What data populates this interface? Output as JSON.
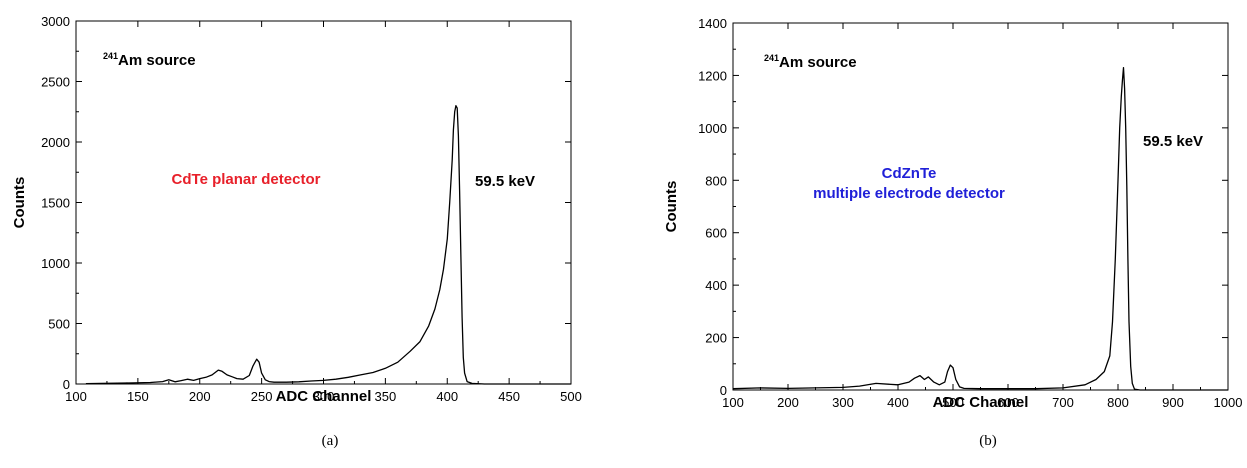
{
  "chart_data": [
    {
      "type": "line",
      "caption": "(a)",
      "xlabel": "ADC  Channel",
      "ylabel": "Counts",
      "xlim": [
        100,
        500
      ],
      "ylim": [
        0,
        3000
      ],
      "xticks": [
        100,
        150,
        200,
        250,
        300,
        350,
        400,
        450,
        500
      ],
      "yticks": [
        0,
        500,
        1000,
        1500,
        2000,
        2500,
        3000
      ],
      "source_label": {
        "sup": "241",
        "text": "Am source"
      },
      "detector_label": [
        "CdTe planar detector"
      ],
      "detector_color": "#e8202a",
      "peak_label": "59.5 keV",
      "series": [
        {
          "x": [
            108,
            120,
            140,
            160,
            170,
            175,
            180,
            185,
            190,
            195,
            200,
            205,
            210,
            215,
            218,
            222,
            226,
            230,
            235,
            240,
            243,
            246,
            248,
            250,
            253,
            256,
            260,
            270,
            280,
            290,
            300,
            310,
            320,
            330,
            340,
            350,
            360,
            370,
            378,
            385,
            390,
            394,
            397,
            400,
            402,
            404,
            405,
            406,
            407,
            408,
            409,
            410,
            411,
            412,
            413,
            414,
            416,
            420,
            430,
            500
          ],
          "y": [
            3,
            5,
            8,
            12,
            20,
            35,
            18,
            28,
            40,
            30,
            45,
            55,
            75,
            115,
            105,
            75,
            60,
            45,
            40,
            70,
            150,
            205,
            180,
            90,
            35,
            20,
            15,
            15,
            18,
            25,
            30,
            40,
            55,
            75,
            95,
            130,
            180,
            270,
            350,
            480,
            620,
            780,
            950,
            1200,
            1500,
            1850,
            2100,
            2250,
            2300,
            2280,
            2050,
            1600,
            1050,
            550,
            220,
            90,
            20,
            5,
            0,
            0
          ]
        }
      ]
    },
    {
      "type": "line",
      "caption": "(b)",
      "xlabel": "ADC  Channel",
      "ylabel": "Counts",
      "xlim": [
        100,
        1000
      ],
      "ylim": [
        0,
        1400
      ],
      "xticks": [
        100,
        200,
        300,
        400,
        500,
        600,
        700,
        800,
        900,
        1000
      ],
      "yticks": [
        0,
        200,
        400,
        600,
        800,
        1000,
        1200,
        1400
      ],
      "source_label": {
        "sup": "241",
        "text": "Am source"
      },
      "detector_label": [
        "CdZnTe",
        "multiple electrode detector"
      ],
      "detector_color": "#2020d8",
      "peak_label": "59.5 keV",
      "series": [
        {
          "x": [
            100,
            150,
            200,
            250,
            300,
            330,
            360,
            400,
            420,
            430,
            440,
            448,
            455,
            465,
            475,
            485,
            490,
            495,
            500,
            505,
            512,
            520,
            550,
            600,
            650,
            700,
            740,
            760,
            775,
            785,
            790,
            795,
            800,
            803,
            806,
            808,
            810,
            812,
            814,
            816,
            818,
            820,
            823,
            826,
            830,
            840,
            900,
            1000
          ],
          "y": [
            5,
            8,
            6,
            8,
            10,
            15,
            25,
            20,
            30,
            45,
            55,
            40,
            50,
            30,
            20,
            30,
            70,
            95,
            85,
            40,
            12,
            6,
            5,
            5,
            5,
            8,
            20,
            40,
            70,
            130,
            260,
            500,
            800,
            1000,
            1120,
            1180,
            1230,
            1150,
            1000,
            780,
            500,
            260,
            90,
            25,
            3,
            0,
            0,
            0
          ]
        }
      ]
    }
  ]
}
